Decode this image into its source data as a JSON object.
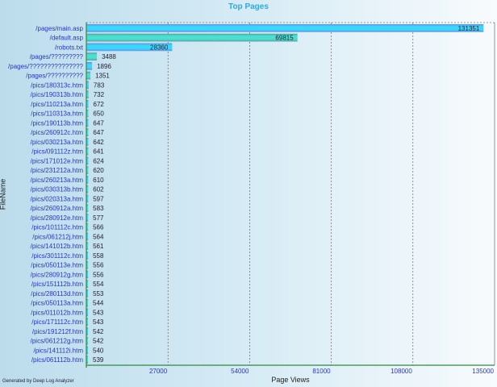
{
  "footer": "Generated by Deep Log Analyzer",
  "chart_data": {
    "type": "bar",
    "orientation": "horizontal",
    "title": "Top Pages",
    "xlabel": "Page Views",
    "ylabel": "FileName",
    "xlim": [
      0,
      135000
    ],
    "xticks": [
      27000,
      54000,
      81000,
      108000,
      135000
    ],
    "grid": true,
    "colors": [
      "#38d8fa",
      "#4ccfb0"
    ],
    "categories": [
      "/pages/main.asp",
      "/default.asp",
      "/robots.txt",
      "/pages/?????????",
      "/pages/???????????????",
      "/pages/??????????",
      "/pics/180313c.htm",
      "/pics/190313b.htm",
      "/pics/110213a.htm",
      "/pics/110313a.htm",
      "/pics/190113b.htm",
      "/pics/260912c.htm",
      "/pics/030213a.htm",
      "/pics/091112z.htm",
      "/pics/171012e.htm",
      "/pics/231212a.htm",
      "/pics/260213a.htm",
      "/pics/030313b.htm",
      "/pics/020313a.htm",
      "/pics/260912a.htm",
      "/pics/280912e.htm",
      "/pics/101112c.htm",
      "/pics/061212j.htm",
      "/pics/141012b.htm",
      "/pics/301112c.htm",
      "/pics/050113e.htm",
      "/pics/280912g.htm",
      "/pics/151112b.htm",
      "/pics/280113d.htm",
      "/pics/050113a.htm",
      "/pics/011012b.htm",
      "/pics/171112c.htm",
      "/pics/191212f.htm",
      "/pics/061212g.htm",
      "/pics/141112i.htm",
      "/pics/061112b.htm"
    ],
    "values": [
      131351,
      69815,
      28360,
      3488,
      1896,
      1351,
      783,
      732,
      672,
      650,
      647,
      647,
      642,
      641,
      624,
      620,
      610,
      602,
      597,
      583,
      577,
      566,
      564,
      561,
      558,
      556,
      556,
      554,
      553,
      544,
      543,
      543,
      542,
      542,
      540,
      539
    ]
  }
}
